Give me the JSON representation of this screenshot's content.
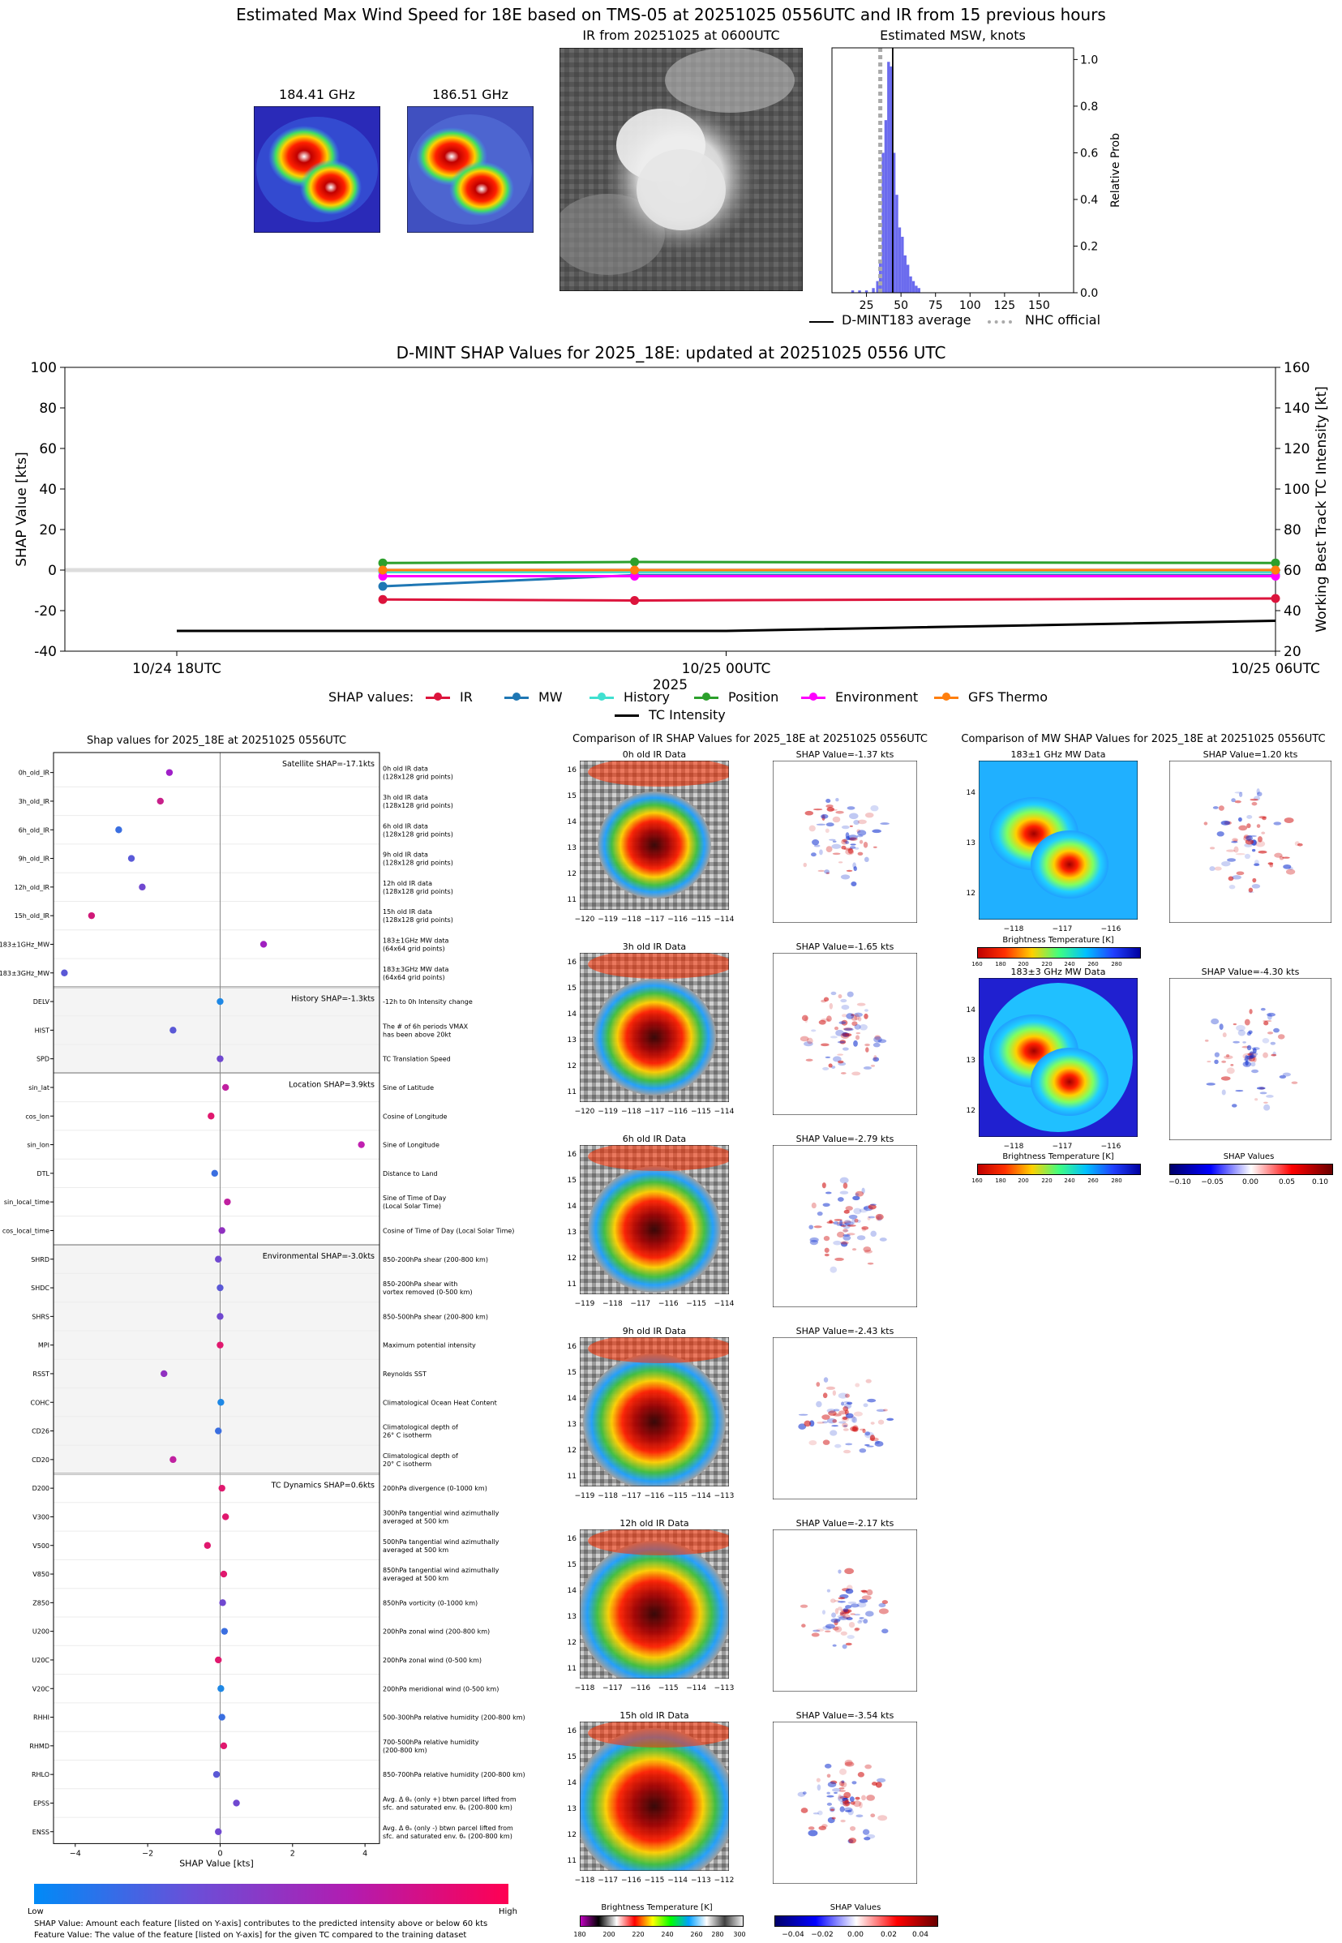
{
  "header": {
    "main_title": "Estimated Max Wind Speed for 18E based on TMS-05 at 20251025 0556UTC and IR from 15 previous hours",
    "mw1_title": "184.41 GHz",
    "mw2_title": "186.51 GHz",
    "ir_title": "IR from 20251025 at 0600UTC",
    "msw_title": "Estimated MSW, knots",
    "msw_ylabel": "Relative Prob",
    "legend_dmint": "D-MINT183 average",
    "legend_nhc": "NHC official"
  },
  "timeseries": {
    "title": "D-MINT SHAP Values for 2025_18E: updated at 20251025 0556 UTC",
    "ylabel_left": "SHAP Value [kts]",
    "ylabel_right": "Working Best Track TC Intensity [kt]",
    "xlabel": "2025",
    "legend_title": "SHAP values:",
    "legend_items": [
      "IR",
      "MW",
      "History",
      "Position",
      "Environment",
      "GFS Thermo",
      "TC Intensity"
    ]
  },
  "shap_panel": {
    "title": "Shap values for 2025_18E at 20251025 0556UTC",
    "xlabel": "SHAP Value [kts]",
    "colorbar_low": "Low",
    "colorbar_high": "High",
    "footnote1": "SHAP Value: Amount each feature [listed on Y-axis] contributes to the predicted intensity above or below 60 kts",
    "footnote2": "Feature Value: The value of the feature [listed on Y-axis] for the given TC compared to the training dataset",
    "group_labels": [
      "Satellite SHAP=-17.1kts",
      "History SHAP=-1.3kts",
      "Location SHAP=3.9kts",
      "Environmental SHAP=-3.0kts",
      "TC Dynamics SHAP=0.6kts"
    ]
  },
  "ir_comp": {
    "title": "Comparison of IR SHAP Values for 2025_18E at 20251025 0556UTC",
    "colorbar_label": "Brightness Temperature [K]",
    "shap_colorbar_label": "SHAP Values",
    "panels": [
      {
        "data_title": "0h old IR Data",
        "shap_title": "SHAP Value=-1.37 kts",
        "xticks": [
          "−120",
          "−119",
          "−118",
          "−117",
          "−116",
          "−115",
          "−114"
        ],
        "yticks": [
          "16",
          "15",
          "14",
          "13",
          "12",
          "11"
        ]
      },
      {
        "data_title": "3h old IR Data",
        "shap_title": "SHAP Value=-1.65 kts",
        "xticks": [
          "−120",
          "−119",
          "−118",
          "−117",
          "−116",
          "−115",
          "−114"
        ],
        "yticks": [
          "16",
          "15",
          "14",
          "13",
          "12",
          "11"
        ]
      },
      {
        "data_title": "6h old IR Data",
        "shap_title": "SHAP Value=-2.79 kts",
        "xticks": [
          "−119",
          "−118",
          "−117",
          "−116",
          "−115",
          "−114"
        ],
        "yticks": [
          "16",
          "15",
          "14",
          "13",
          "12",
          "11"
        ]
      },
      {
        "data_title": "9h old IR Data",
        "shap_title": "SHAP Value=-2.43 kts",
        "xticks": [
          "−119",
          "−118",
          "−117",
          "−116",
          "−115",
          "−114",
          "−113"
        ],
        "yticks": [
          "16",
          "15",
          "14",
          "13",
          "12",
          "11"
        ]
      },
      {
        "data_title": "12h old IR Data",
        "shap_title": "SHAP Value=-2.17 kts",
        "xticks": [
          "−118",
          "−117",
          "−116",
          "−115",
          "−114",
          "−113"
        ],
        "yticks": [
          "16",
          "15",
          "14",
          "13",
          "12",
          "11"
        ]
      },
      {
        "data_title": "15h old IR Data",
        "shap_title": "SHAP Value=-3.54 kts",
        "xticks": [
          "−118",
          "−117",
          "−116",
          "−115",
          "−114",
          "−113",
          "−112"
        ],
        "yticks": [
          "16",
          "15",
          "14",
          "13",
          "12",
          "11"
        ]
      }
    ]
  },
  "mw_comp": {
    "title": "Comparison of MW SHAP Values for 2025_18E at 20251025 0556UTC",
    "colorbar_label": "Brightness Temperature [K]",
    "shap_colorbar_label": "SHAP Values",
    "panels": [
      {
        "data_title": "183±1 GHz MW Data",
        "shap_title": "SHAP Value=1.20 kts",
        "xticks": [
          "−118",
          "−117",
          "−116"
        ],
        "yticks": [
          "14",
          "13",
          "12"
        ]
      },
      {
        "data_title": "183±3 GHz MW Data",
        "shap_title": "SHAP Value=-4.30 kts",
        "xticks": [
          "−118",
          "−117",
          "−116"
        ],
        "yticks": [
          "14",
          "13",
          "12"
        ]
      }
    ]
  },
  "colors": {
    "IR": "#dc143c",
    "MW": "#1f77b4",
    "History": "#40e0d0",
    "Position": "#2ca02c",
    "Environment": "#ff00ff",
    "GFS Thermo": "#ff7f0e",
    "TC Intensity": "#000000"
  },
  "chart_data": [
    {
      "type": "bar",
      "title": "Estimated MSW, knots",
      "ylabel": "Relative Prob",
      "xlim": [
        0,
        175
      ],
      "ylim": [
        0,
        1.05
      ],
      "xticks": [
        25,
        50,
        75,
        100,
        125,
        150
      ],
      "yticks": [
        0.0,
        0.2,
        0.4,
        0.6,
        0.8,
        1.0
      ],
      "bins": [
        [
          15,
          0.01
        ],
        [
          20,
          0.01
        ],
        [
          25,
          0.01
        ],
        [
          30,
          0.02
        ],
        [
          33,
          0.05
        ],
        [
          35,
          0.13
        ],
        [
          37,
          0.6
        ],
        [
          39,
          0.74
        ],
        [
          41,
          0.99
        ],
        [
          43,
          0.97
        ],
        [
          45,
          0.6
        ],
        [
          47,
          0.42
        ],
        [
          49,
          0.28
        ],
        [
          51,
          0.24
        ],
        [
          53,
          0.16
        ],
        [
          55,
          0.12
        ],
        [
          57,
          0.07
        ],
        [
          59,
          0.05
        ],
        [
          61,
          0.03
        ],
        [
          63,
          0.02
        ]
      ],
      "dmint_average": 44,
      "nhc_official": 35
    },
    {
      "type": "line",
      "title": "D-MINT SHAP Values for 2025_18E: updated at 20251025 0556 UTC",
      "xlabel": "2025",
      "ylabel": "SHAP Value [kts]",
      "ylabel_right": "Working Best Track TC Intensity [kt]",
      "x_ticks": [
        "10/24 18UTC",
        "10/25 00UTC",
        "10/25 06UTC"
      ],
      "ylim": [
        -40,
        100
      ],
      "ylim_right": [
        20,
        160
      ],
      "yticks": [
        -40,
        -20,
        0,
        20,
        40,
        60,
        80,
        100
      ],
      "yticks_right": [
        20,
        40,
        60,
        80,
        100,
        120,
        140,
        160
      ],
      "x_hours": [
        0,
        6,
        12
      ],
      "series": [
        {
          "name": "IR",
          "x": [
            2.25,
            5.0,
            12.0
          ],
          "values": [
            -14.5,
            -15.0,
            -14.0
          ]
        },
        {
          "name": "MW",
          "x": [
            2.25,
            5.0,
            12.0
          ],
          "values": [
            -8.0,
            -2.5,
            -2.5
          ]
        },
        {
          "name": "History",
          "x": [
            2.25,
            5.0,
            12.0
          ],
          "values": [
            -1.0,
            -1.0,
            -1.0
          ]
        },
        {
          "name": "Position",
          "x": [
            2.25,
            5.0,
            12.0
          ],
          "values": [
            3.5,
            4.0,
            3.5
          ]
        },
        {
          "name": "Environment",
          "x": [
            2.25,
            5.0,
            12.0
          ],
          "values": [
            -3.0,
            -3.0,
            -3.0
          ]
        },
        {
          "name": "GFS Thermo",
          "x": [
            2.25,
            5.0,
            12.0
          ],
          "values": [
            0.0,
            0.0,
            0.0
          ]
        }
      ],
      "tc_intensity": {
        "name": "TC Intensity",
        "x": [
          0,
          6,
          12
        ],
        "values": [
          30,
          30,
          35
        ]
      }
    },
    {
      "type": "scatter",
      "title": "Shap values for 2025_18E at 20251025 0556UTC",
      "xlabel": "SHAP Value [kts]",
      "xlim": [
        -4.6,
        4.4
      ],
      "xticks": [
        -4,
        -2,
        0,
        2,
        4
      ],
      "features": [
        {
          "name": "0h_old_IR",
          "desc": [
            "0h old IR data",
            "(128x128 grid points)"
          ],
          "shap": -1.4,
          "color": "#a020c8"
        },
        {
          "name": "3h_old_IR",
          "desc": [
            "3h old IR data",
            "(128x128 grid points)"
          ],
          "shap": -1.65,
          "color": "#c8208a"
        },
        {
          "name": "6h_old_IR",
          "desc": [
            "6h old IR data",
            "(128x128 grid points)"
          ],
          "shap": -2.8,
          "color": "#3a6ee0"
        },
        {
          "name": "9h_old_IR",
          "desc": [
            "9h old IR data",
            "(128x128 grid points)"
          ],
          "shap": -2.45,
          "color": "#5a5ad8"
        },
        {
          "name": "12h_old_IR",
          "desc": [
            "12h old IR data",
            "(128x128 grid points)"
          ],
          "shap": -2.15,
          "color": "#7048d0"
        },
        {
          "name": "15h_old_IR",
          "desc": [
            "15h old IR data",
            "(128x128 grid points)"
          ],
          "shap": -3.55,
          "color": "#d01878"
        },
        {
          "name": "183±1GHz_MW",
          "desc": [
            "183±1GHz MW data",
            "(64x64 grid points)"
          ],
          "shap": 1.2,
          "color": "#a020c0"
        },
        {
          "name": "183±3GHz_MW",
          "desc": [
            "183±3GHz MW data",
            "(64x64 grid points)"
          ],
          "shap": -4.3,
          "color": "#5a58d6"
        },
        {
          "name": "DELV",
          "desc": [
            "-12h to 0h Intensity change"
          ],
          "shap": 0.0,
          "color": "#1e88e5"
        },
        {
          "name": "HIST",
          "desc": [
            "The # of 6h periods VMAX",
            "has been above 20kt"
          ],
          "shap": -1.3,
          "color": "#5a58d6"
        },
        {
          "name": "SPD",
          "desc": [
            "TC Translation Speed"
          ],
          "shap": 0.0,
          "color": "#7048d0"
        },
        {
          "name": "sin_lat",
          "desc": [
            "Sine of Latitude"
          ],
          "shap": 0.15,
          "color": "#c020a0"
        },
        {
          "name": "cos_lon",
          "desc": [
            "Cosine of Longitude"
          ],
          "shap": -0.25,
          "color": "#e0186e"
        },
        {
          "name": "sin_lon",
          "desc": [
            "Sine of Longitude"
          ],
          "shap": 3.9,
          "color": "#c020b0"
        },
        {
          "name": "DTL",
          "desc": [
            "Distance to Land"
          ],
          "shap": -0.15,
          "color": "#3a6ee0"
        },
        {
          "name": "sin_local_time",
          "desc": [
            "Sine of Time of Day",
            "(Local Solar Time)"
          ],
          "shap": 0.2,
          "color": "#c020a0"
        },
        {
          "name": "cos_local_time",
          "desc": [
            "Cosine of Time of Day (Local Solar Time)"
          ],
          "shap": 0.05,
          "color": "#9030c0"
        },
        {
          "name": "SHRD",
          "desc": [
            "850-200hPa shear (200-800 km)"
          ],
          "shap": -0.05,
          "color": "#7048d0"
        },
        {
          "name": "SHDC",
          "desc": [
            "850-200hPa shear with",
            "vortex removed (0-500 km)"
          ],
          "shap": 0.0,
          "color": "#5a58d6"
        },
        {
          "name": "SHRS",
          "desc": [
            "850-500hPa shear (200-800 km)"
          ],
          "shap": 0.0,
          "color": "#7048d0"
        },
        {
          "name": "MPI",
          "desc": [
            "Maximum potential intensity"
          ],
          "shap": 0.0,
          "color": "#e0186e"
        },
        {
          "name": "RSST",
          "desc": [
            "Reynolds SST"
          ],
          "shap": -1.55,
          "color": "#9030c0"
        },
        {
          "name": "COHC",
          "desc": [
            "Climatological Ocean Heat Content"
          ],
          "shap": 0.02,
          "color": "#1e88e5"
        },
        {
          "name": "CD26",
          "desc": [
            "Climatological depth of",
            "26° C isotherm"
          ],
          "shap": -0.05,
          "color": "#3a6ee0"
        },
        {
          "name": "CD20",
          "desc": [
            "Climatological depth of",
            "20° C isotherm"
          ],
          "shap": -1.3,
          "color": "#c020a0"
        },
        {
          "name": "D200",
          "desc": [
            "200hPa divergence (0-1000 km)"
          ],
          "shap": 0.05,
          "color": "#e0186e"
        },
        {
          "name": "V300",
          "desc": [
            "300hPa tangential wind azimuthally",
            "averaged at 500 km"
          ],
          "shap": 0.15,
          "color": "#e0186e"
        },
        {
          "name": "V500",
          "desc": [
            "500hPa tangential wind azimuthally",
            "averaged at 500 km"
          ],
          "shap": -0.35,
          "color": "#e0186e"
        },
        {
          "name": "V850",
          "desc": [
            "850hPa tangential wind azimuthally",
            "averaged at 500 km"
          ],
          "shap": 0.1,
          "color": "#e0186e"
        },
        {
          "name": "Z850",
          "desc": [
            "850hPa vorticity (0-1000 km)"
          ],
          "shap": 0.07,
          "color": "#7048d0"
        },
        {
          "name": "U200",
          "desc": [
            "200hPa zonal wind (200-800 km)"
          ],
          "shap": 0.12,
          "color": "#3a6ee0"
        },
        {
          "name": "U20C",
          "desc": [
            "200hPa zonal wind (0-500 km)"
          ],
          "shap": -0.05,
          "color": "#e0186e"
        },
        {
          "name": "V20C",
          "desc": [
            "200hPa meridional wind (0-500 km)"
          ],
          "shap": 0.02,
          "color": "#1e88e5"
        },
        {
          "name": "RHHI",
          "desc": [
            "500-300hPa relative humidity (200-800 km)"
          ],
          "shap": 0.05,
          "color": "#3a6ee0"
        },
        {
          "name": "RHMD",
          "desc": [
            "700-500hPa relative humidity",
            "(200-800 km)"
          ],
          "shap": 0.1,
          "color": "#e0186e"
        },
        {
          "name": "RHLO",
          "desc": [
            "850-700hPa relative humidity (200-800 km)"
          ],
          "shap": -0.1,
          "color": "#5a58d6"
        },
        {
          "name": "EPSS",
          "desc": [
            "Avg. Δ θₑ (only +) btwn parcel lifted from",
            "sfc. and saturated env. θₑ (200-800 km)"
          ],
          "shap": 0.45,
          "color": "#7048d0"
        },
        {
          "name": "ENSS",
          "desc": [
            "Avg. Δ θₑ (only -) btwn parcel lifted from",
            "sfc. and saturated env. θₑ (200-800 km)"
          ],
          "shap": -0.05,
          "color": "#7048d0"
        }
      ],
      "groups": [
        {
          "label": "Satellite SHAP=-17.1kts",
          "start": 0,
          "end": 7,
          "shaded": false
        },
        {
          "label": "History SHAP=-1.3kts",
          "start": 8,
          "end": 10,
          "shaded": true
        },
        {
          "label": "Location SHAP=3.9kts",
          "start": 11,
          "end": 16,
          "shaded": false
        },
        {
          "label": "Environmental SHAP=-3.0kts",
          "start": 17,
          "end": 24,
          "shaded": true
        },
        {
          "label": "TC Dynamics SHAP=0.6kts",
          "start": 25,
          "end": 38,
          "shaded": false
        }
      ]
    }
  ]
}
